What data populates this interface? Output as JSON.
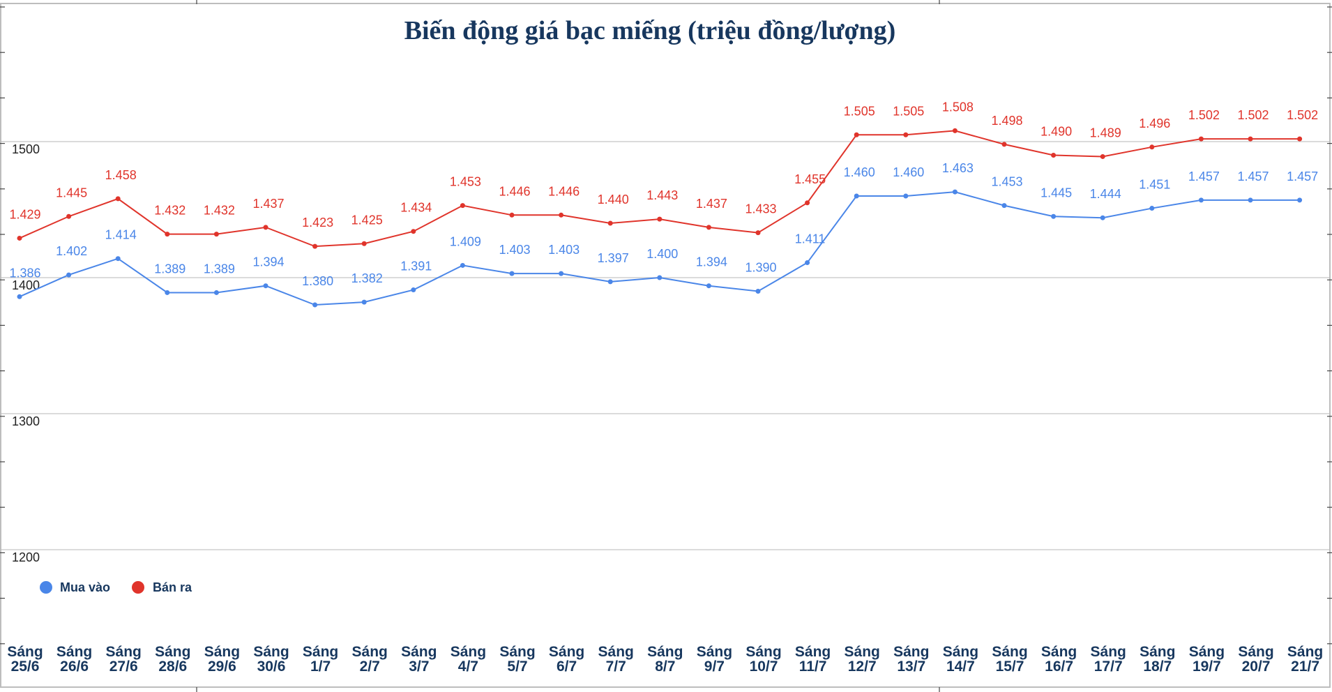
{
  "chart_data": {
    "type": "line",
    "title": "Biến động giá bạc miếng (triệu đồng/lượng)",
    "categories": [
      "Sáng 25/6",
      "Sáng 26/6",
      "Sáng 27/6",
      "Sáng 28/6",
      "Sáng 29/6",
      "Sáng 30/6",
      "Sáng 1/7",
      "Sáng 2/7",
      "Sáng 3/7",
      "Sáng 4/7",
      "Sáng 5/7",
      "Sáng 6/7",
      "Sáng 7/7",
      "Sáng 8/7",
      "Sáng 9/7",
      "Sáng 10/7",
      "Sáng 11/7",
      "Sáng 12/7",
      "Sáng 13/7",
      "Sáng 14/7",
      "Sáng 15/7",
      "Sáng 16/7",
      "Sáng 17/7",
      "Sáng 18/7",
      "Sáng 19/7",
      "Sáng 20/7",
      "Sáng 21/7"
    ],
    "series": [
      {
        "name": "Mua vào",
        "color": "#4a86e8",
        "values": [
          1386,
          1402,
          1414,
          1389,
          1389,
          1394,
          1380,
          1382,
          1391,
          1409,
          1403,
          1403,
          1397,
          1400,
          1394,
          1390,
          1411,
          1460,
          1460,
          1463,
          1453,
          1445,
          1444,
          1451,
          1457,
          1457,
          1457
        ],
        "labels": [
          "1.386",
          "1.402",
          "1.414",
          "1.389",
          "1.389",
          "1.394",
          "1.380",
          "1.382",
          "1.391",
          "1.409",
          "1.403",
          "1.403",
          "1.397",
          "1.400",
          "1.394",
          "1.390",
          "1.411",
          "1.460",
          "1.460",
          "1.463",
          "1.453",
          "1.445",
          "1.444",
          "1.451",
          "1.457",
          "1.457",
          "1.457"
        ]
      },
      {
        "name": "Bán ra",
        "color": "#e0342b",
        "values": [
          1429,
          1445,
          1458,
          1432,
          1432,
          1437,
          1423,
          1425,
          1434,
          1453,
          1446,
          1446,
          1440,
          1443,
          1437,
          1433,
          1455,
          1505,
          1505,
          1508,
          1498,
          1490,
          1489,
          1496,
          1502,
          1502,
          1502
        ],
        "labels": [
          "1.429",
          "1.445",
          "1.458",
          "1.432",
          "1.432",
          "1.437",
          "1.423",
          "1.425",
          "1.434",
          "1.453",
          "1.446",
          "1.446",
          "1.440",
          "1.443",
          "1.437",
          "1.433",
          "1.455",
          "1.505",
          "1.505",
          "1.508",
          "1.498",
          "1.490",
          "1.489",
          "1.496",
          "1.502",
          "1.502",
          "1.502"
        ]
      }
    ],
    "yticks": [
      1200,
      1300,
      1400,
      1500
    ],
    "ytick_labels": [
      "1200",
      "1300",
      "1400",
      "1500"
    ],
    "ylim": [
      1135,
      1535
    ],
    "grid": true,
    "legend": "bottom-left",
    "text_color": "#17375e"
  }
}
